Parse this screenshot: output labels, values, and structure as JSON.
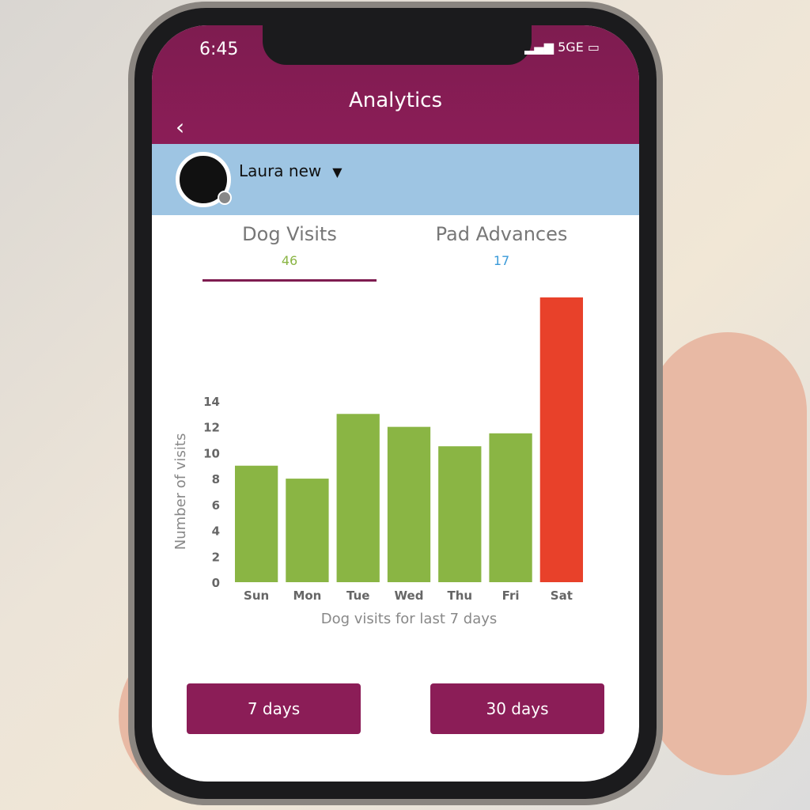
{
  "status_bar": {
    "time": "6:45",
    "network": "5GE"
  },
  "header": {
    "title": "Analytics",
    "back_icon": "chevron-left-icon"
  },
  "user": {
    "name": "Laura new",
    "dropdown_icon": "caret-down-icon",
    "avatar_icon": "person-icon"
  },
  "tabs": [
    {
      "label": "Dog Visits",
      "count": "46",
      "color": "#8ab544",
      "active": true
    },
    {
      "label": "Pad Advances",
      "count": "17",
      "color": "#3a9ad9",
      "active": false
    }
  ],
  "buttons": {
    "seven_days": "7 days",
    "thirty_days": "30 days"
  },
  "colors": {
    "brand": "#8b1d57",
    "userbar": "#9ec5e3",
    "bar": "#8ab544",
    "highlight_bar": "#e8412a"
  },
  "chart_data": {
    "type": "bar",
    "categories": [
      "Sun",
      "Mon",
      "Tue",
      "Wed",
      "Thu",
      "Fri",
      "Sat"
    ],
    "values": [
      9,
      8,
      13,
      12,
      10.5,
      11.5,
      22
    ],
    "highlight": "Sat",
    "xlabel": "Dog visits for last 7 days",
    "ylabel": "Number of visits",
    "yticks": [
      0,
      2,
      4,
      6,
      8,
      10,
      12,
      14
    ],
    "ylim": [
      0,
      22
    ],
    "grid": false
  }
}
